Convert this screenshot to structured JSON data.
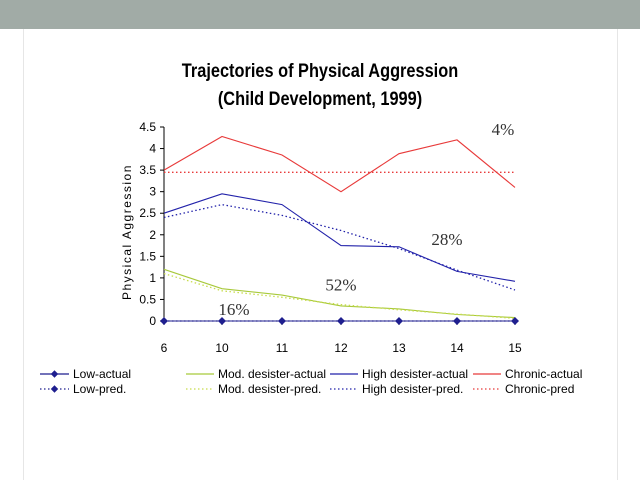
{
  "chart_data": {
    "type": "line",
    "title_line1": "Trajectories of Physical Aggression",
    "title_line2": "(Child Development, 1999)",
    "ylabel": "Physical Aggression",
    "xlabel": "",
    "categories": [
      "6",
      "10",
      "11",
      "12",
      "13",
      "14",
      "15"
    ],
    "ylim": [
      0,
      4.5
    ],
    "yticks": [
      "0",
      "0.5",
      "1",
      "1.5",
      "2",
      "2.5",
      "3",
      "3.5",
      "4",
      "4.5"
    ],
    "series": [
      {
        "name": "Low-actual",
        "color": "#1f1f8f",
        "style": "solid",
        "marker": "diamond",
        "values": [
          0,
          0,
          0,
          0,
          0,
          0,
          0
        ]
      },
      {
        "name": "Low-pred.",
        "color": "#1f1f8f",
        "style": "dotted",
        "marker": "diamond",
        "values": [
          0,
          0,
          0,
          0,
          0,
          0,
          0
        ]
      },
      {
        "name": "Mod. desister-actual",
        "color": "#a8c93b",
        "style": "solid",
        "marker": "none",
        "values": [
          1.2,
          0.75,
          0.6,
          0.35,
          0.28,
          0.15,
          0.08
        ]
      },
      {
        "name": "Mod. desister-pred.",
        "color": "#c7dc4c",
        "style": "dotted",
        "marker": "none",
        "values": [
          1.1,
          0.7,
          0.55,
          0.38,
          0.26,
          0.16,
          0.06
        ]
      },
      {
        "name": "High desister-actual",
        "color": "#2222aa",
        "style": "solid",
        "marker": "none",
        "values": [
          2.5,
          2.95,
          2.7,
          1.75,
          1.72,
          1.15,
          0.92
        ]
      },
      {
        "name": "High desister-pred.",
        "color": "#2222aa",
        "style": "dotted",
        "marker": "none",
        "values": [
          2.4,
          2.7,
          2.45,
          2.1,
          1.68,
          1.18,
          0.72
        ]
      },
      {
        "name": "Chronic-actual",
        "color": "#e83a3a",
        "style": "solid",
        "marker": "none",
        "values": [
          3.5,
          4.28,
          3.85,
          3.0,
          3.88,
          4.2,
          3.1
        ]
      },
      {
        "name": "Chronic-pred",
        "color": "#e83a3a",
        "style": "dotted",
        "marker": "none",
        "values": [
          3.45,
          3.45,
          3.45,
          3.45,
          3.45,
          3.45,
          3.45
        ]
      }
    ],
    "annotations": [
      {
        "text": "4%",
        "x": "15",
        "y": 4.45
      },
      {
        "text": "28%",
        "x": "14",
        "y": 1.9
      },
      {
        "text": "52%",
        "x": "12",
        "y": 0.85
      },
      {
        "text": "16%",
        "x": "10",
        "y": 0.28
      }
    ],
    "legend_placement": "bottom",
    "grid": false
  }
}
